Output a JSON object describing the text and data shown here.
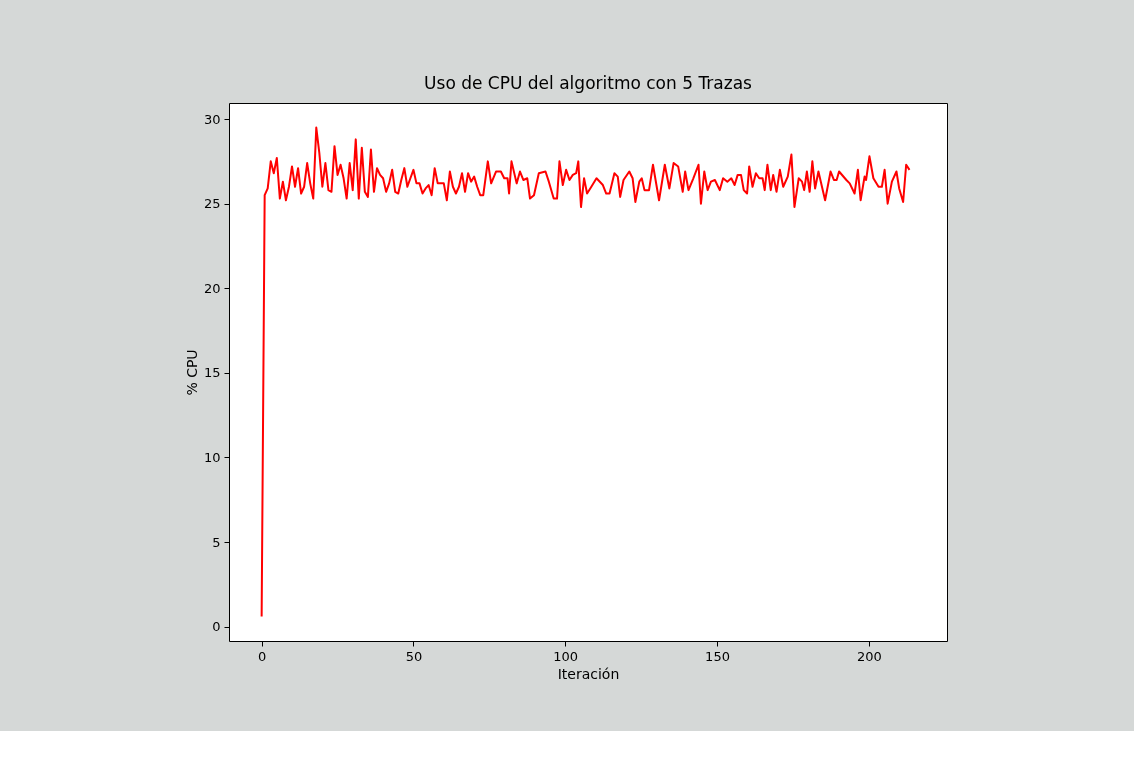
{
  "chart_data": {
    "type": "line",
    "title": "Uso de CPU del algoritmo con 5 Trazas",
    "xlabel": "Iteración",
    "ylabel": "% CPU",
    "xlim": [
      -10.75,
      225.75
    ],
    "xticks": [
      0,
      50,
      100,
      150,
      200
    ],
    "ylim": [
      -0.85,
      30.95
    ],
    "yticks": [
      0,
      5,
      10,
      15,
      20,
      25,
      30
    ],
    "grid": false,
    "marker": "none",
    "line_style": "solid",
    "series": [
      {
        "color": "#ff0000",
        "x": [
          0,
          1,
          2,
          3,
          4,
          5,
          6,
          7,
          8,
          9,
          10,
          11,
          12,
          13,
          14,
          15,
          16,
          17,
          18,
          19,
          20,
          21,
          22,
          23,
          24,
          25,
          26,
          27,
          28,
          29,
          30,
          31,
          32,
          33,
          34,
          35,
          36,
          37,
          38,
          39,
          40,
          41,
          42,
          43,
          44,
          45,
          46,
          47,
          48,
          49,
          50,
          51,
          52,
          53,
          54,
          55,
          56,
          57,
          58,
          59,
          60,
          61,
          62,
          63,
          64,
          65,
          66,
          67,
          68,
          69,
          70,
          71,
          72,
          73,
          74.5,
          75.6,
          77.2,
          78.8,
          79.9,
          81,
          81.5,
          82.3,
          84,
          85.1,
          86.2,
          87.5,
          88.4,
          89.7,
          91.3,
          93.5,
          94.6,
          96.2,
          97.3,
          98.1,
          99.2,
          100.3,
          101.4,
          102.5,
          103.6,
          104.3,
          105.2,
          106.2,
          107.2,
          108.6,
          110.3,
          112.4,
          113.5,
          114.6,
          116.2,
          117.3,
          118.1,
          119.2,
          121.1,
          122.2,
          123.1,
          124.4,
          125.2,
          126.1,
          127.6,
          128.9,
          130.9,
          132.8,
          134.3,
          135.7,
          137.2,
          138.7,
          139.5,
          140.6,
          142.2,
          143.9,
          144.7,
          145.8,
          146.9,
          148,
          149.3,
          150.9,
          152,
          153.4,
          154.7,
          155.8,
          156.8,
          157.9,
          158.8,
          159.9,
          160.6,
          161.7,
          162.8,
          163.9,
          165,
          165.7,
          166.6,
          167.7,
          168.5,
          169.6,
          170.7,
          171.8,
          173.3,
          174.5,
          175.5,
          176.9,
          178,
          178.7,
          179.6,
          180.5,
          181.4,
          182.3,
          183.4,
          185.6,
          187.4,
          188.5,
          189.4,
          190.2,
          192.6,
          193.7,
          195.3,
          196.4,
          197.3,
          198.6,
          199.1,
          200.2,
          201.5,
          203.2,
          204.3,
          205.2,
          206.2,
          207.6,
          209.1,
          210,
          211.3,
          212.3,
          213.4
        ],
        "values": [
          0.6,
          25.5,
          25.9,
          27.5,
          26.8,
          27.7,
          25.3,
          26.3,
          25.2,
          26.0,
          27.2,
          26.0,
          27.1,
          25.6,
          26.0,
          27.4,
          26.2,
          25.3,
          29.5,
          28.0,
          26.0,
          27.4,
          25.8,
          25.7,
          28.4,
          26.7,
          27.3,
          26.5,
          25.3,
          27.4,
          25.8,
          28.8,
          25.3,
          28.3,
          25.7,
          25.4,
          28.2,
          25.7,
          27.1,
          26.7,
          26.5,
          25.7,
          26.2,
          27.0,
          25.7,
          25.6,
          26.4,
          27.1,
          26.0,
          26.5,
          27.0,
          26.2,
          26.2,
          25.6,
          25.9,
          26.1,
          25.5,
          27.1,
          26.2,
          26.2,
          26.2,
          25.2,
          26.9,
          26.0,
          25.6,
          26.0,
          26.8,
          25.7,
          26.8,
          26.3,
          26.6,
          26.0,
          25.5,
          25.5,
          27.5,
          26.2,
          26.9,
          26.9,
          26.5,
          26.5,
          25.6,
          27.5,
          26.2,
          26.9,
          26.4,
          26.5,
          25.3,
          25.5,
          26.8,
          26.9,
          26.3,
          25.3,
          25.3,
          27.5,
          26.1,
          27.0,
          26.4,
          26.7,
          26.8,
          27.5,
          24.8,
          26.5,
          25.6,
          26.0,
          26.5,
          26.1,
          25.6,
          25.6,
          26.8,
          26.6,
          25.4,
          26.4,
          26.9,
          26.5,
          25.1,
          26.3,
          26.5,
          25.8,
          25.8,
          27.3,
          25.2,
          27.3,
          25.9,
          27.4,
          27.2,
          25.7,
          26.9,
          25.8,
          26.5,
          27.3,
          25.0,
          26.9,
          25.8,
          26.3,
          26.4,
          25.8,
          26.5,
          26.3,
          26.5,
          26.1,
          26.7,
          26.7,
          25.8,
          25.6,
          27.2,
          26.0,
          26.8,
          26.5,
          26.5,
          25.8,
          27.3,
          25.8,
          26.7,
          25.7,
          27.0,
          26.0,
          26.6,
          27.9,
          24.8,
          26.5,
          26.3,
          25.8,
          26.9,
          25.7,
          27.5,
          25.9,
          26.9,
          25.2,
          26.9,
          26.4,
          26.4,
          26.9,
          26.4,
          26.2,
          25.6,
          27.0,
          25.2,
          26.6,
          26.4,
          27.8,
          26.5,
          26.0,
          26.0,
          27.0,
          25.0,
          26.3,
          26.9,
          25.9,
          25.1,
          27.3,
          27.0
        ]
      }
    ]
  }
}
